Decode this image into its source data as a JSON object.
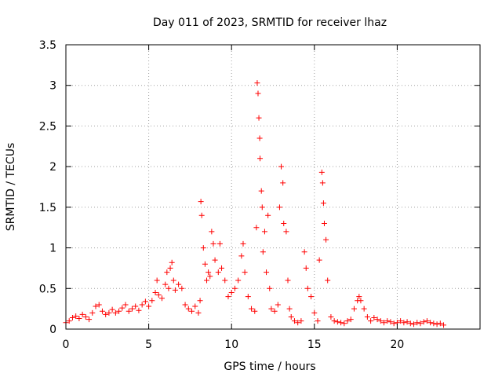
{
  "chart_data": {
    "type": "scatter",
    "title": "Day 011 of 2023, SRMTID for receiver lhaz",
    "xlabel": "GPS time / hours",
    "ylabel": "SRMTID / TECUs",
    "xlim": [
      0,
      25
    ],
    "ylim": [
      0,
      3.5
    ],
    "x_ticks": [
      0,
      5,
      10,
      15,
      20
    ],
    "y_ticks": [
      0,
      0.5,
      1,
      1.5,
      2,
      2.5,
      3,
      3.5
    ],
    "x_tick_labels": [
      "0",
      "5",
      "10",
      "15",
      "20"
    ],
    "y_tick_labels": [
      "0",
      "0.5",
      "1",
      "1.5",
      "2",
      "2.5",
      "3",
      "3.5"
    ],
    "grid": true,
    "marker": "+",
    "series_color": "#ff0000",
    "series": [
      {
        "name": "SRMTID",
        "points": [
          [
            0.0,
            0.08
          ],
          [
            0.2,
            0.1
          ],
          [
            0.4,
            0.14
          ],
          [
            0.6,
            0.16
          ],
          [
            0.8,
            0.13
          ],
          [
            1.0,
            0.18
          ],
          [
            1.2,
            0.15
          ],
          [
            1.4,
            0.12
          ],
          [
            1.6,
            0.2
          ],
          [
            1.8,
            0.28
          ],
          [
            2.0,
            0.3
          ],
          [
            2.2,
            0.22
          ],
          [
            2.4,
            0.18
          ],
          [
            2.6,
            0.2
          ],
          [
            2.8,
            0.24
          ],
          [
            3.0,
            0.2
          ],
          [
            3.2,
            0.22
          ],
          [
            3.4,
            0.26
          ],
          [
            3.6,
            0.3
          ],
          [
            3.8,
            0.22
          ],
          [
            4.0,
            0.25
          ],
          [
            4.2,
            0.28
          ],
          [
            4.4,
            0.23
          ],
          [
            4.6,
            0.3
          ],
          [
            4.8,
            0.34
          ],
          [
            5.0,
            0.28
          ],
          [
            5.2,
            0.35
          ],
          [
            5.4,
            0.45
          ],
          [
            5.5,
            0.6
          ],
          [
            5.6,
            0.42
          ],
          [
            5.8,
            0.38
          ],
          [
            6.0,
            0.55
          ],
          [
            6.1,
            0.7
          ],
          [
            6.2,
            0.5
          ],
          [
            6.3,
            0.75
          ],
          [
            6.4,
            0.82
          ],
          [
            6.5,
            0.6
          ],
          [
            6.6,
            0.48
          ],
          [
            6.8,
            0.55
          ],
          [
            7.0,
            0.5
          ],
          [
            7.2,
            0.3
          ],
          [
            7.4,
            0.25
          ],
          [
            7.6,
            0.22
          ],
          [
            7.8,
            0.28
          ],
          [
            8.0,
            0.2
          ],
          [
            8.1,
            0.35
          ],
          [
            8.15,
            1.57
          ],
          [
            8.2,
            1.4
          ],
          [
            8.3,
            1.0
          ],
          [
            8.4,
            0.8
          ],
          [
            8.5,
            0.6
          ],
          [
            8.6,
            0.7
          ],
          [
            8.7,
            0.65
          ],
          [
            8.8,
            1.2
          ],
          [
            8.9,
            1.05
          ],
          [
            9.0,
            0.85
          ],
          [
            9.2,
            0.7
          ],
          [
            9.3,
            1.05
          ],
          [
            9.4,
            0.75
          ],
          [
            9.6,
            0.6
          ],
          [
            9.8,
            0.4
          ],
          [
            10.0,
            0.45
          ],
          [
            10.2,
            0.5
          ],
          [
            10.4,
            0.6
          ],
          [
            10.6,
            0.9
          ],
          [
            10.7,
            1.05
          ],
          [
            10.8,
            0.7
          ],
          [
            11.0,
            0.4
          ],
          [
            11.2,
            0.25
          ],
          [
            11.4,
            0.22
          ],
          [
            11.5,
            1.25
          ],
          [
            11.55,
            3.03
          ],
          [
            11.6,
            2.9
          ],
          [
            11.65,
            2.6
          ],
          [
            11.7,
            2.35
          ],
          [
            11.72,
            2.1
          ],
          [
            11.8,
            1.7
          ],
          [
            11.85,
            1.5
          ],
          [
            11.9,
            0.95
          ],
          [
            12.0,
            1.2
          ],
          [
            12.1,
            0.7
          ],
          [
            12.2,
            1.4
          ],
          [
            12.3,
            0.5
          ],
          [
            12.4,
            0.25
          ],
          [
            12.6,
            0.22
          ],
          [
            12.8,
            0.3
          ],
          [
            12.9,
            1.5
          ],
          [
            13.0,
            2.0
          ],
          [
            13.1,
            1.8
          ],
          [
            13.15,
            1.3
          ],
          [
            13.3,
            1.2
          ],
          [
            13.4,
            0.6
          ],
          [
            13.5,
            0.25
          ],
          [
            13.6,
            0.15
          ],
          [
            13.8,
            0.1
          ],
          [
            14.0,
            0.08
          ],
          [
            14.2,
            0.1
          ],
          [
            14.4,
            0.95
          ],
          [
            14.5,
            0.75
          ],
          [
            14.6,
            0.5
          ],
          [
            14.8,
            0.4
          ],
          [
            15.0,
            0.2
          ],
          [
            15.2,
            0.1
          ],
          [
            15.3,
            0.85
          ],
          [
            15.45,
            1.93
          ],
          [
            15.5,
            1.8
          ],
          [
            15.55,
            1.55
          ],
          [
            15.6,
            1.3
          ],
          [
            15.7,
            1.1
          ],
          [
            15.8,
            0.6
          ],
          [
            16.0,
            0.15
          ],
          [
            16.2,
            0.1
          ],
          [
            16.4,
            0.09
          ],
          [
            16.6,
            0.08
          ],
          [
            16.8,
            0.07
          ],
          [
            17.0,
            0.1
          ],
          [
            17.2,
            0.12
          ],
          [
            17.4,
            0.25
          ],
          [
            17.6,
            0.35
          ],
          [
            17.7,
            0.4
          ],
          [
            17.8,
            0.35
          ],
          [
            18.0,
            0.25
          ],
          [
            18.2,
            0.15
          ],
          [
            18.4,
            0.1
          ],
          [
            18.6,
            0.14
          ],
          [
            18.8,
            0.12
          ],
          [
            19.0,
            0.1
          ],
          [
            19.2,
            0.08
          ],
          [
            19.4,
            0.1
          ],
          [
            19.6,
            0.09
          ],
          [
            19.8,
            0.07
          ],
          [
            20.0,
            0.08
          ],
          [
            20.2,
            0.1
          ],
          [
            20.4,
            0.08
          ],
          [
            20.6,
            0.09
          ],
          [
            20.8,
            0.07
          ],
          [
            21.0,
            0.06
          ],
          [
            21.2,
            0.08
          ],
          [
            21.4,
            0.07
          ],
          [
            21.6,
            0.09
          ],
          [
            21.8,
            0.1
          ],
          [
            22.0,
            0.08
          ],
          [
            22.2,
            0.07
          ],
          [
            22.4,
            0.06
          ],
          [
            22.6,
            0.07
          ],
          [
            22.8,
            0.05
          ]
        ]
      }
    ]
  }
}
